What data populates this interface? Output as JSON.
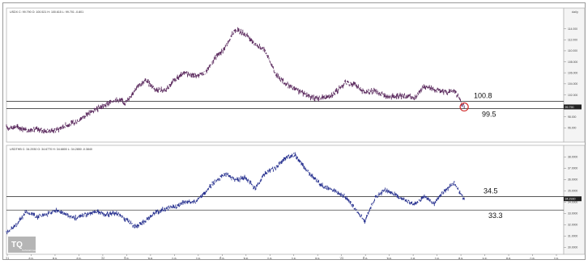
{
  "header": {
    "corner_label": "daily"
  },
  "chart_data": [
    {
      "type": "line",
      "title": "USDX C: 99.790 O: 100.521 H: 100.615 L: 99.701 -0.801",
      "ylim": [
        94,
        116
      ],
      "yticks": [
        96.0,
        98.0,
        100.0,
        102.0,
        104.0,
        106.0,
        108.0,
        110.0,
        112.0,
        114.0
      ],
      "price_tag": "99.790",
      "x_range": [
        0,
        280
      ],
      "series": [
        {
          "color": "#5b2a5e",
          "x": [
            0,
            5,
            10,
            15,
            20,
            25,
            30,
            35,
            40,
            45,
            50,
            55,
            60,
            65,
            70,
            75,
            80,
            85,
            90,
            95,
            100,
            105,
            110,
            115,
            120,
            125,
            130,
            135,
            140,
            145,
            150,
            155,
            160,
            165,
            170,
            175,
            180,
            185,
            190,
            195,
            200,
            205,
            210,
            215,
            220,
            225,
            230
          ],
          "values": [
            96.0,
            96.2,
            95.6,
            95.7,
            95.4,
            95.6,
            96.5,
            97.0,
            98.4,
            99.3,
            100.2,
            101.2,
            100.6,
            103.2,
            104.6,
            103.0,
            102.8,
            104.8,
            106.0,
            105.4,
            106.0,
            108.8,
            110.6,
            113.9,
            113.0,
            111.2,
            110.1,
            105.9,
            104.1,
            103.0,
            102.2,
            101.3,
            101.5,
            102.3,
            104.2,
            103.9,
            102.4,
            102.7,
            101.8,
            101.6,
            101.9,
            101.3,
            103.6,
            103.0,
            102.5,
            102.8,
            99.8
          ]
        }
      ],
      "hlines": [
        {
          "value": 100.8,
          "label": "100.8"
        },
        {
          "value": 99.5,
          "label": "99.5"
        }
      ]
    },
    {
      "type": "line",
      "title": "USDTHB C: 34.2930 O: 34.6770 H: 34.6800 L: 34.2850 -0.3840",
      "ylim": [
        29.6,
        38.6
      ],
      "yticks": [
        30.0,
        31.0,
        32.0,
        33.0,
        34.0,
        35.0,
        36.0,
        37.0,
        38.0
      ],
      "price_tag": "34.2930",
      "x_range": [
        0,
        280
      ],
      "series": [
        {
          "color": "#26308f",
          "x": [
            0,
            5,
            10,
            15,
            20,
            25,
            30,
            35,
            40,
            45,
            50,
            55,
            60,
            65,
            70,
            75,
            80,
            85,
            90,
            95,
            100,
            105,
            110,
            115,
            120,
            125,
            130,
            135,
            140,
            145,
            150,
            155,
            160,
            165,
            170,
            175,
            180,
            185,
            190,
            195,
            200,
            205,
            210,
            215,
            220,
            225,
            230
          ],
          "values": [
            31.3,
            32.0,
            33.2,
            32.7,
            32.9,
            33.3,
            32.9,
            32.6,
            32.9,
            33.2,
            32.9,
            33.0,
            32.5,
            31.8,
            32.4,
            33.1,
            33.4,
            33.6,
            34.1,
            34.0,
            34.9,
            35.9,
            36.5,
            35.9,
            36.2,
            35.2,
            36.6,
            37.0,
            37.9,
            38.2,
            37.0,
            36.0,
            35.3,
            35.0,
            34.5,
            33.5,
            32.3,
            34.3,
            35.1,
            34.7,
            34.2,
            33.8,
            34.5,
            33.9,
            35.0,
            35.7,
            34.3
          ]
        }
      ],
      "hlines": [
        {
          "value": 34.5,
          "label": "34.5"
        },
        {
          "value": 33.3,
          "label": "33.3"
        }
      ]
    }
  ],
  "x_axis": {
    "labels": [
      "'21",
      "ส.ค.",
      "พ.ย.",
      "ส.ค.",
      "'22",
      "มี.ค.",
      "พ.ค.",
      "ก.ค.",
      "ก.ย.",
      "มี.ค.",
      "พ.ค.",
      "ก.ค.",
      "ก.ย.",
      "พ.ย.",
      "'23",
      "มี.ค.",
      "พ.ค.",
      "ก.ค.",
      "ก.ย.",
      "พ.ย.",
      "ธ.ค.",
      "พ.ค.",
      "ก.ค.",
      "ก.ย."
    ]
  },
  "watermark": {
    "logo_text": "TQ",
    "sub_text": "Technical Investor"
  }
}
